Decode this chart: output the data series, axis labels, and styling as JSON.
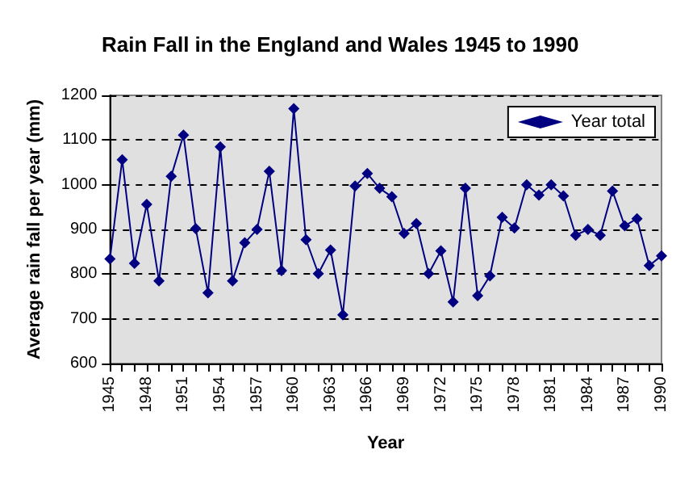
{
  "chart_data": {
    "type": "line",
    "title": "Rain Fall in the England and Wales 1945 to 1990",
    "xlabel": "Year",
    "ylabel": "Average rain fall per year (mm)",
    "categories": [
      "1945",
      null,
      null,
      "1948",
      null,
      null,
      "1951",
      null,
      null,
      "1954",
      null,
      null,
      "1957",
      null,
      null,
      "1960",
      null,
      null,
      "1963",
      null,
      null,
      "1966",
      null,
      null,
      "1969",
      null,
      null,
      "1972",
      null,
      null,
      "1975",
      null,
      null,
      "1978",
      null,
      null,
      "1981",
      null,
      null,
      "1984",
      null,
      null,
      "1987",
      null,
      null,
      "1990"
    ],
    "series": [
      {
        "name": "Year total",
        "color": "#000080",
        "values": [
          834,
          1056,
          824,
          956,
          785,
          1019,
          1111,
          902,
          758,
          1085,
          785,
          870,
          900,
          1030,
          808,
          1170,
          877,
          801,
          854,
          709,
          997,
          1025,
          992,
          973,
          891,
          913,
          801,
          852,
          738,
          992,
          752,
          796,
          927,
          903,
          1000,
          977,
          1000,
          975,
          887,
          900,
          887,
          986,
          908,
          924,
          819,
          841
        ]
      }
    ],
    "ylim": [
      600,
      1200
    ],
    "yticks": [
      600,
      700,
      800,
      900,
      1000,
      1100,
      1200
    ],
    "grid": "y",
    "legend": "top right",
    "marker": "diamond",
    "line_style": "solid"
  }
}
